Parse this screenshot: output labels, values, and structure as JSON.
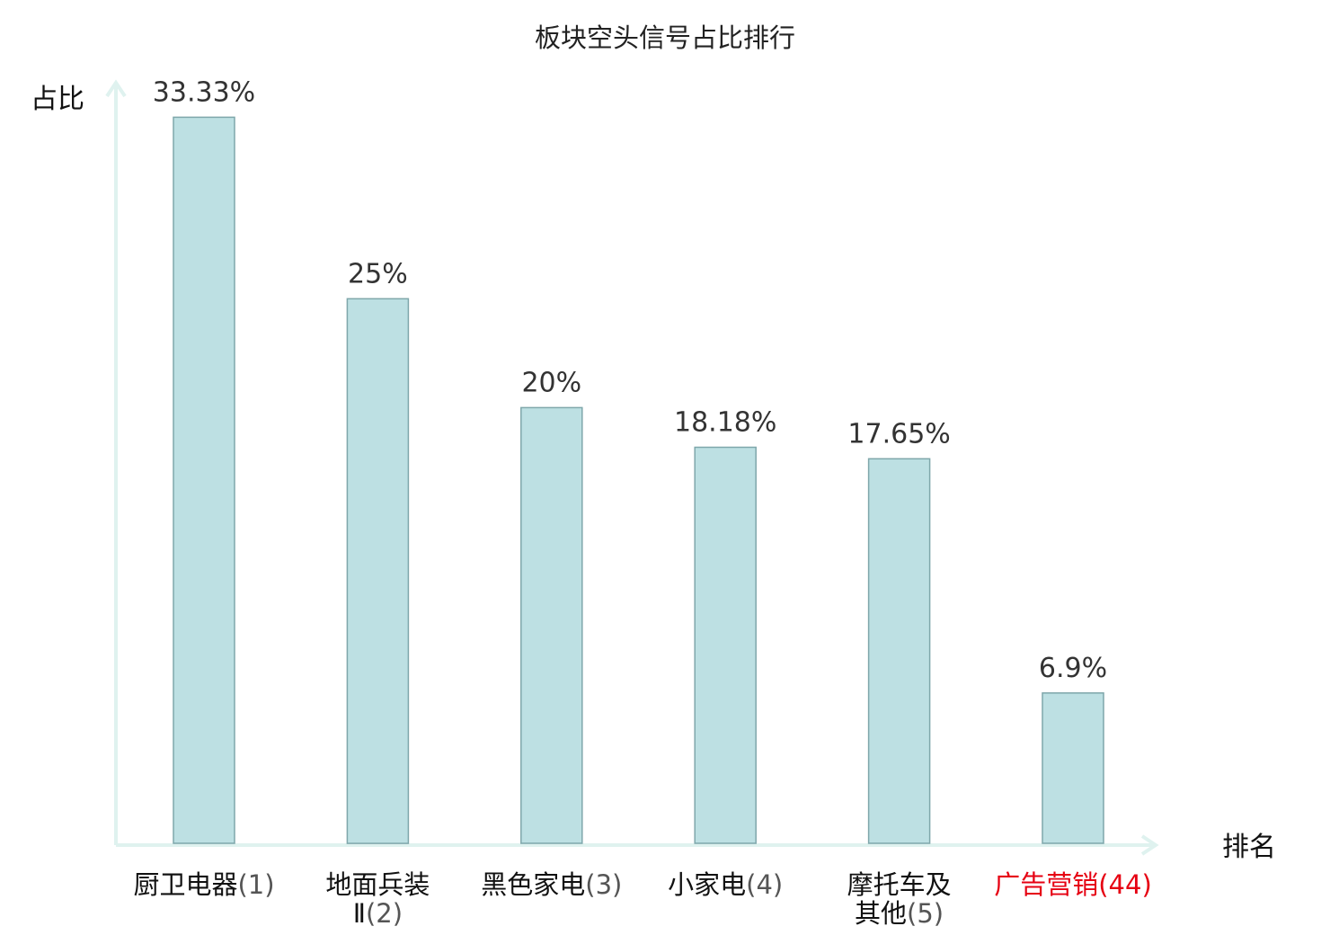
{
  "chart_data": {
    "type": "bar",
    "title": "板块空头信号占比排行",
    "ylabel": "占比",
    "xlabel": "排名",
    "ylim": [
      0,
      35
    ],
    "grid": false,
    "legend": "none",
    "categories": [
      {
        "name_lines": [
          "厨卫电器"
        ],
        "rank": "(1)",
        "highlight": false
      },
      {
        "name_lines": [
          "地面兵装",
          "Ⅱ"
        ],
        "rank": "(2)",
        "highlight": false
      },
      {
        "name_lines": [
          "黑色家电"
        ],
        "rank": "(3)",
        "highlight": false
      },
      {
        "name_lines": [
          "小家电"
        ],
        "rank": "(4)",
        "highlight": false
      },
      {
        "name_lines": [
          "摩托车及",
          "其他"
        ],
        "rank": "(5)",
        "highlight": false
      },
      {
        "name_lines": [
          "广告营销"
        ],
        "rank": "(44)",
        "highlight": true
      }
    ],
    "values": [
      33.33,
      25,
      20,
      18.18,
      17.65,
      6.9
    ],
    "value_labels": [
      "33.33%",
      "25%",
      "20%",
      "18.18%",
      "17.65%",
      "6.9%"
    ]
  },
  "colors": {
    "bar_fill": "#bde0e3",
    "bar_stroke": "#7fa7ab",
    "axis": "#dff2ef",
    "highlight": "#e60012"
  }
}
